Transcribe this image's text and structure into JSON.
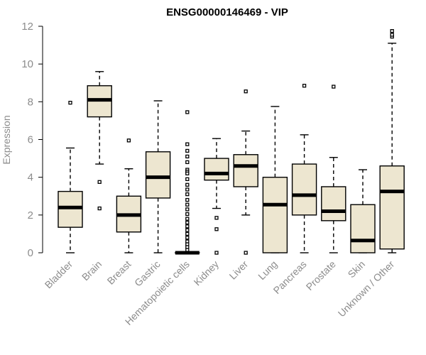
{
  "chart_data": {
    "type": "boxplot",
    "title": "ENSG00000146469 - VIP",
    "ylabel": "Expression",
    "xlabel": "",
    "ylim": [
      0,
      12
    ],
    "yticks": [
      0,
      2,
      4,
      6,
      8,
      10,
      12
    ],
    "grid": false,
    "legend": "none",
    "box_fill": "#ede6d0",
    "box_stroke": "#000000",
    "categories": [
      "Bladder",
      "Brain",
      "Breast",
      "Gastric",
      "Hematopoietic cells",
      "Kidney",
      "Liver",
      "Lung",
      "Pancreas",
      "Prostate",
      "Skin",
      "Unknown / Other"
    ],
    "boxes": [
      {
        "category": "Bladder",
        "whisker_low": 0.0,
        "q1": 1.35,
        "median": 2.4,
        "q3": 3.25,
        "whisker_high": 5.55,
        "outliers": [
          7.95
        ]
      },
      {
        "category": "Brain",
        "whisker_low": 4.7,
        "q1": 7.2,
        "median": 8.1,
        "q3": 8.85,
        "whisker_high": 9.6,
        "outliers": [
          3.75,
          2.35
        ]
      },
      {
        "category": "Breast",
        "whisker_low": 0.0,
        "q1": 1.1,
        "median": 2.0,
        "q3": 3.0,
        "whisker_high": 4.45,
        "outliers": [
          5.95
        ]
      },
      {
        "category": "Gastric",
        "whisker_low": 0.0,
        "q1": 2.9,
        "median": 4.0,
        "q3": 5.35,
        "whisker_high": 8.05,
        "outliers": []
      },
      {
        "category": "Hematopoietic cells",
        "whisker_low": 0.0,
        "q1": 0.0,
        "median": 0.0,
        "q3": 0.0,
        "whisker_high": 0.0,
        "outliers": [
          7.45,
          5.75,
          5.4,
          5.1,
          4.8,
          4.4,
          4.3,
          4.2,
          3.9,
          3.6,
          3.35,
          3.1,
          2.8,
          2.55,
          2.3,
          2.05,
          1.8,
          1.6,
          1.4,
          1.2,
          1.0,
          0.8,
          0.6,
          0.45,
          0.3,
          0.15
        ]
      },
      {
        "category": "Kidney",
        "whisker_low": 2.35,
        "q1": 3.85,
        "median": 4.2,
        "q3": 5.0,
        "whisker_high": 6.05,
        "outliers": [
          1.85,
          1.25,
          0.0
        ]
      },
      {
        "category": "Liver",
        "whisker_low": 2.0,
        "q1": 3.5,
        "median": 4.6,
        "q3": 5.2,
        "whisker_high": 6.45,
        "outliers": [
          8.55,
          0.0
        ]
      },
      {
        "category": "Lung",
        "whisker_low": 0.0,
        "q1": 0.0,
        "median": 2.55,
        "q3": 4.0,
        "whisker_high": 7.75,
        "outliers": []
      },
      {
        "category": "Pancreas",
        "whisker_low": 0.0,
        "q1": 2.0,
        "median": 3.05,
        "q3": 4.7,
        "whisker_high": 6.25,
        "outliers": [
          8.85
        ]
      },
      {
        "category": "Prostate",
        "whisker_low": 0.0,
        "q1": 1.7,
        "median": 2.2,
        "q3": 3.5,
        "whisker_high": 5.05,
        "outliers": [
          8.8
        ]
      },
      {
        "category": "Skin",
        "whisker_low": 0.0,
        "q1": 0.0,
        "median": 0.65,
        "q3": 2.55,
        "whisker_high": 4.4,
        "outliers": []
      },
      {
        "category": "Unknown / Other",
        "whisker_low": 0.0,
        "q1": 0.2,
        "median": 3.25,
        "q3": 4.6,
        "whisker_high": 11.1,
        "outliers": [
          11.45,
          11.55,
          11.75
        ]
      }
    ]
  }
}
